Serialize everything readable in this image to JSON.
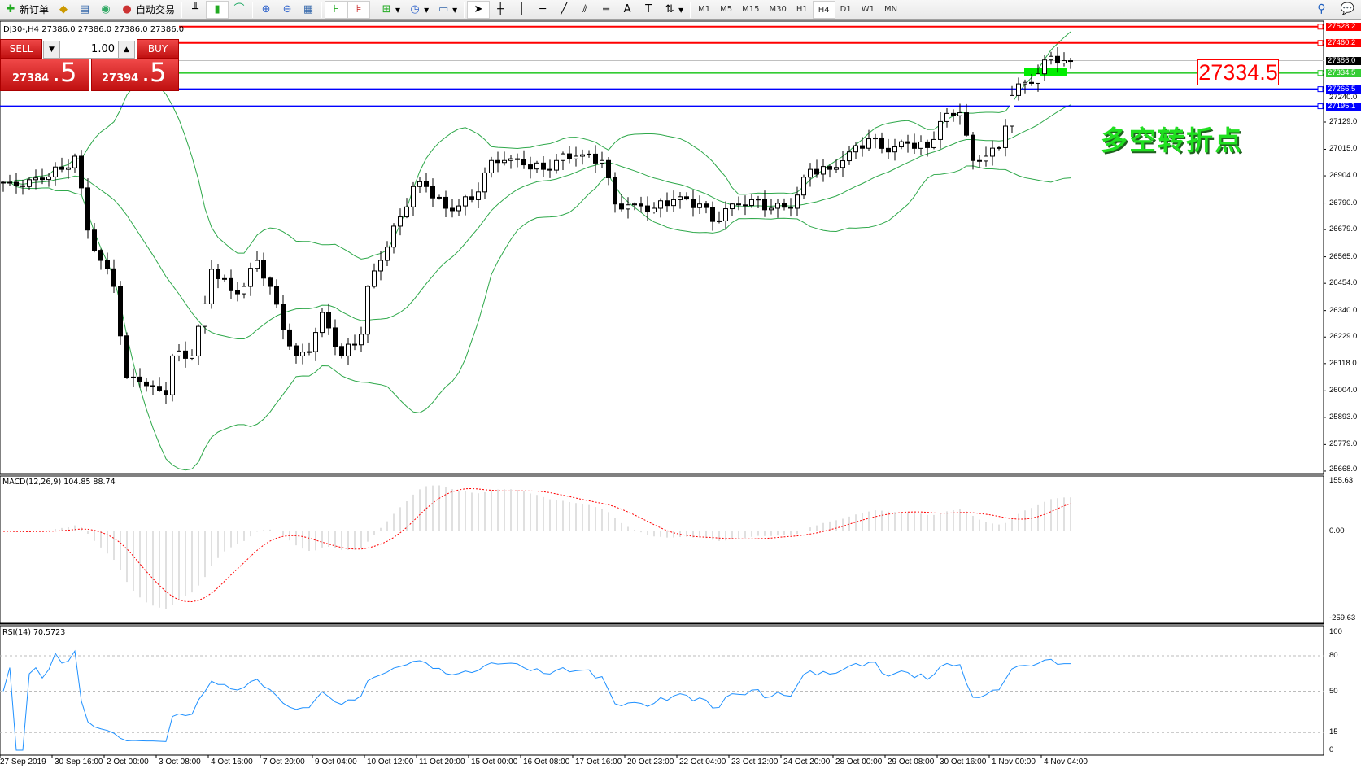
{
  "toolbar": {
    "items": [
      {
        "name": "new-order",
        "icon": "new-order-icon",
        "label": "新订单"
      },
      {
        "name": "market-watch",
        "icon": "gold-bars-icon",
        "label": ""
      },
      {
        "name": "navigator",
        "icon": "navigator-icon",
        "label": ""
      },
      {
        "name": "signals",
        "icon": "signal-icon",
        "label": ""
      },
      {
        "name": "auto-trading",
        "icon": "auto-trading-icon",
        "label": "自动交易"
      }
    ],
    "timeframes": [
      "M1",
      "M5",
      "M15",
      "M30",
      "H1",
      "H4",
      "D1",
      "W1",
      "MN"
    ],
    "active_timeframe": "H4"
  },
  "chart": {
    "header": "DJ30-,H4  27386.0 27386.0 27386.0 27386.0",
    "trade_panel": {
      "sell_label": "SELL",
      "buy_label": "BUY",
      "lot": "1.00",
      "sell_big": "27384",
      "sell_small": ".5",
      "buy_big": "27394",
      "buy_small": ".5"
    },
    "price_ticks": [
      "27129.0",
      "27015.0",
      "26904.0",
      "26790.0",
      "26679.0",
      "26565.0",
      "26454.0",
      "26340.0",
      "26229.0",
      "26118.0",
      "26004.0",
      "25893.0",
      "25779.0",
      "25668.0"
    ],
    "hlines": [
      {
        "price": 27528.2,
        "label": "27528.2",
        "color": "#ff0000"
      },
      {
        "price": 27460.2,
        "label": "27460.2",
        "color": "#ff0000"
      },
      {
        "price": 27334.5,
        "label": "27334.5",
        "color": "#33cc33"
      },
      {
        "price": 27266.5,
        "label": "27266.5",
        "color": "#0000ff"
      },
      {
        "price": 27195.1,
        "label": "27195.1",
        "color": "#0000ff"
      }
    ],
    "bid": {
      "price": 27386.0,
      "label": "27386.0"
    },
    "extra_tick": "27240.0",
    "price_box": "27334.5",
    "annotation": "多空转折点",
    "candles": {
      "closes_at_bar": [
        [
          0,
          26877
        ],
        [
          1,
          26877
        ],
        [
          3,
          26859
        ],
        [
          5,
          26895
        ],
        [
          9,
          26931
        ],
        [
          11,
          26986
        ],
        [
          13,
          26677
        ],
        [
          15,
          26550
        ],
        [
          17,
          26441
        ],
        [
          19,
          26059
        ],
        [
          21,
          26041
        ],
        [
          23,
          26023
        ],
        [
          25,
          25987
        ],
        [
          26,
          26150
        ],
        [
          29,
          26150
        ],
        [
          31,
          26368
        ],
        [
          32,
          26513
        ],
        [
          35,
          26423
        ],
        [
          37,
          26441
        ],
        [
          39,
          26550
        ],
        [
          41,
          26441
        ],
        [
          43,
          26259
        ],
        [
          45,
          26150
        ],
        [
          47,
          26168
        ],
        [
          49,
          26332
        ],
        [
          52,
          26150
        ],
        [
          55,
          26241
        ],
        [
          56,
          26441
        ],
        [
          58,
          26550
        ],
        [
          61,
          26732
        ],
        [
          63,
          26859
        ],
        [
          65,
          26859
        ],
        [
          68,
          26768
        ],
        [
          72,
          26804
        ],
        [
          75,
          26968
        ],
        [
          77,
          26968
        ],
        [
          80,
          26950
        ],
        [
          83,
          26931
        ],
        [
          85,
          26968
        ],
        [
          88,
          26986
        ],
        [
          92,
          26968
        ],
        [
          94,
          26786
        ],
        [
          97,
          26786
        ],
        [
          100,
          26768
        ],
        [
          103,
          26804
        ],
        [
          107,
          26786
        ],
        [
          109,
          26713
        ],
        [
          112,
          26786
        ],
        [
          115,
          26804
        ],
        [
          118,
          26768
        ],
        [
          121,
          26768
        ],
        [
          124,
          26931
        ],
        [
          127,
          26931
        ],
        [
          130,
          27004
        ],
        [
          133,
          27059
        ],
        [
          136,
          27004
        ],
        [
          139,
          27040
        ],
        [
          142,
          27022
        ],
        [
          144,
          27131
        ],
        [
          147,
          27168
        ],
        [
          149,
          26968
        ],
        [
          151,
          26986
        ],
        [
          153,
          27022
        ],
        [
          155,
          27240
        ],
        [
          157,
          27295
        ],
        [
          159,
          27331
        ],
        [
          161,
          27404
        ],
        [
          163,
          27386
        ],
        [
          164,
          27386
        ]
      ]
    },
    "colors": {
      "bull": "#ffffff",
      "bear": "#000000",
      "bands": "#2ea84a"
    }
  },
  "macd": {
    "label": "MACD(12,26,9) 104.85 88.74",
    "ticks": [
      "155.63",
      "0.00",
      "-259.63"
    ],
    "max": 155.63,
    "min": -259.63,
    "signal_color": "#ff0000",
    "hist_color": "#c0c0c0"
  },
  "rsi": {
    "label": "RSI(14) 70.5723",
    "ticks": [
      "100",
      "80",
      "50",
      "15",
      "0"
    ],
    "color": "#1e90ff"
  },
  "time_labels": [
    "27 Sep 2019",
    "30 Sep 16:00",
    "2 Oct 00:00",
    "3 Oct 08:00",
    "4 Oct 16:00",
    "7 Oct 20:00",
    "9 Oct 04:00",
    "10 Oct 12:00",
    "11 Oct 20:00",
    "15 Oct 00:00",
    "16 Oct 08:00",
    "17 Oct 16:00",
    "20 Oct 23:00",
    "22 Oct 04:00",
    "23 Oct 12:00",
    "24 Oct 20:00",
    "28 Oct 00:00",
    "29 Oct 08:00",
    "30 Oct 16:00",
    "1 Nov 00:00",
    "4 Nov 04:00"
  ]
}
